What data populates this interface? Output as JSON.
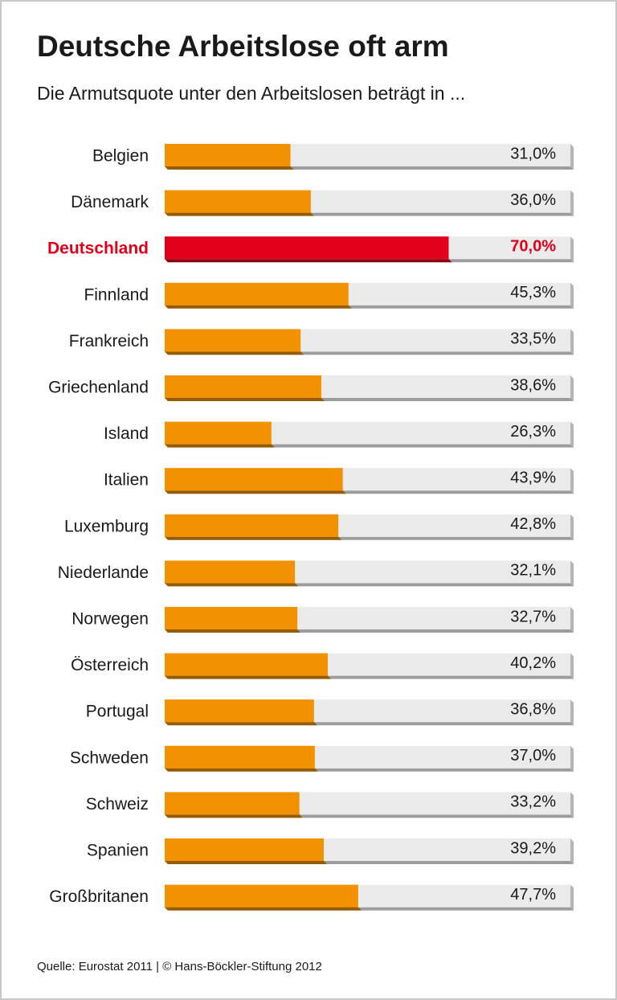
{
  "chart_data": {
    "type": "hbar",
    "title": "Deutsche Arbeitslose oft arm",
    "subtitle": "Die Armutsquote unter den Arbeitslosen beträgt in ...",
    "categories": [
      "Belgien",
      "Dänemark",
      "Deutschland",
      "Finnland",
      "Frankreich",
      "Griechenland",
      "Island",
      "Italien",
      "Luxemburg",
      "Niederlande",
      "Norwegen",
      "Österreich",
      "Portugal",
      "Schweden",
      "Schweiz",
      "Spanien",
      "Großbritanen"
    ],
    "values": [
      31.0,
      36.0,
      70.0,
      45.3,
      33.5,
      38.6,
      26.3,
      43.9,
      42.8,
      32.1,
      32.7,
      40.2,
      36.8,
      37.0,
      33.2,
      39.2,
      47.7
    ],
    "value_labels": [
      "31,0%",
      "36,0%",
      "70,0%",
      "45,3%",
      "33,5%",
      "38,6%",
      "26,3%",
      "43,9%",
      "42,8%",
      "32,1%",
      "32,7%",
      "40,2%",
      "36,8%",
      "37,0%",
      "33,2%",
      "39,2%",
      "47,7%"
    ],
    "color": "#f39200",
    "colors": [
      "#f39200",
      "#f39200",
      "#e2001a",
      "#f39200",
      "#f39200",
      "#f39200",
      "#f39200",
      "#f39200",
      "#f39200",
      "#f39200",
      "#f39200",
      "#f39200",
      "#f39200",
      "#f39200",
      "#f39200",
      "#f39200",
      "#f39200"
    ],
    "xlim": [
      0,
      100
    ],
    "source": "Quelle: Eurostat 2011 | © Hans-Böckler-Stiftung 2012"
  }
}
